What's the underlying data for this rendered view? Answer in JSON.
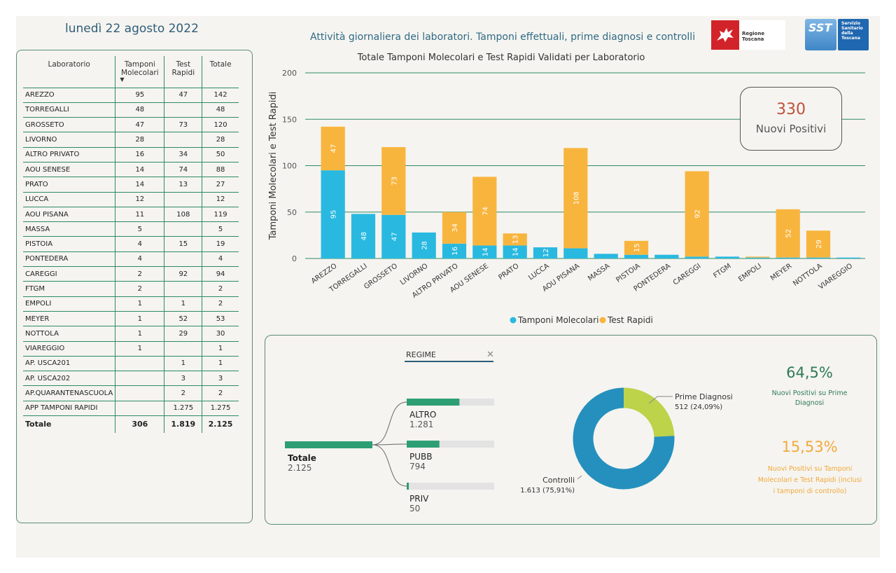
{
  "header": {
    "date": "lunedì 22 agosto 2022",
    "title": "Attività giornaliera dei laboratori. Tamponi effettuali, prime diagnosi e controlli",
    "logo_rt_text": "Regione Toscana",
    "logo_sst_abbr": "SST",
    "logo_sst_lines": [
      "Servizio",
      "Sanitario",
      "della",
      "Toscana"
    ]
  },
  "table": {
    "headers": {
      "lab": "Laboratorio",
      "mol1": "Tamponi",
      "mol2": "Molecolari",
      "rapid1": "Test",
      "rapid2": "Rapidi",
      "tot": "Totale"
    },
    "rows": [
      [
        "AREZZO",
        "95",
        "47",
        "142"
      ],
      [
        "TORREGALLI",
        "48",
        "",
        "48"
      ],
      [
        "GROSSETO",
        "47",
        "73",
        "120"
      ],
      [
        "LIVORNO",
        "28",
        "",
        "28"
      ],
      [
        "ALTRO PRIVATO",
        "16",
        "34",
        "50"
      ],
      [
        "AOU SENESE",
        "14",
        "74",
        "88"
      ],
      [
        "PRATO",
        "14",
        "13",
        "27"
      ],
      [
        "LUCCA",
        "12",
        "",
        "12"
      ],
      [
        "AOU PISANA",
        "11",
        "108",
        "119"
      ],
      [
        "MASSA",
        "5",
        "",
        "5"
      ],
      [
        "PISTOIA",
        "4",
        "15",
        "19"
      ],
      [
        "PONTEDERA",
        "4",
        "",
        "4"
      ],
      [
        "CAREGGI",
        "2",
        "92",
        "94"
      ],
      [
        "FTGM",
        "2",
        "",
        "2"
      ],
      [
        "EMPOLI",
        "1",
        "1",
        "2"
      ],
      [
        "MEYER",
        "1",
        "52",
        "53"
      ],
      [
        "NOTTOLA",
        "1",
        "29",
        "30"
      ],
      [
        "VIAREGGIO",
        "1",
        "",
        "1"
      ],
      [
        "AP. USCA201",
        "",
        "1",
        "1"
      ],
      [
        "AP. USCA202",
        "",
        "3",
        "3"
      ],
      [
        "AP.QUARANTENASCUOLA",
        "",
        "2",
        "2"
      ],
      [
        "APP TAMPONI RAPIDI",
        "",
        "1.275",
        "1.275"
      ]
    ],
    "total": [
      "Totale",
      "306",
      "1.819",
      "2.125"
    ]
  },
  "chart_data": {
    "type": "bar",
    "stacked": true,
    "title": "Totale Tamponi Molecolari e Test Rapidi Validati per Laboratorio",
    "xlabel": "",
    "ylabel": "Tamponi Molecolari e Test Rapidi",
    "ylim": [
      0,
      200
    ],
    "yticks": [
      0,
      50,
      100,
      150,
      200
    ],
    "grid": true,
    "legend_position": "bottom-center",
    "categories": [
      "AREZZO",
      "TORREGALLI",
      "GROSSETO",
      "LIVORNO",
      "ALTRO PRIVATO",
      "AOU SENESE",
      "PRATO",
      "LUCCA",
      "AOU PISANA",
      "MASSA",
      "PISTOIA",
      "PONTEDERA",
      "CAREGGI",
      "FTGM",
      "EMPOLI",
      "MEYER",
      "NOTTOLA",
      "VIAREGGIO"
    ],
    "series": [
      {
        "name": "Tamponi Molecolari",
        "color": "#29b9e0",
        "values": [
          95,
          48,
          47,
          28,
          16,
          14,
          14,
          12,
          11,
          5,
          4,
          4,
          2,
          2,
          1,
          1,
          1,
          1
        ],
        "labels": [
          "95",
          "48",
          "47",
          "28",
          "16",
          "14",
          "14",
          "12",
          "",
          "",
          "",
          "",
          "",
          "",
          "",
          "",
          "",
          ""
        ]
      },
      {
        "name": "Test Rapidi",
        "color": "#f8b53e",
        "values": [
          47,
          0,
          73,
          0,
          34,
          74,
          13,
          0,
          108,
          0,
          15,
          0,
          92,
          0,
          1,
          52,
          29,
          0
        ],
        "labels": [
          "47",
          "",
          "73",
          "",
          "34",
          "74",
          "13",
          "",
          "108",
          "",
          "15",
          "",
          "92",
          "",
          "",
          "52",
          "29",
          ""
        ]
      }
    ]
  },
  "kpi_positive": {
    "value": "330",
    "label": "Nuovi Positivi"
  },
  "regime": {
    "filter_label": "REGIME",
    "close_icon": "close-icon",
    "root": {
      "label": "Totale",
      "value": "2.125",
      "fraction": 1.0
    },
    "branches": [
      {
        "label": "ALTRO",
        "value": "1.281",
        "fraction": 0.6028
      },
      {
        "label": "PUBB",
        "value": "794",
        "fraction": 0.3736
      },
      {
        "label": "PRIV",
        "value": "50",
        "fraction": 0.0235
      }
    ],
    "bar_color": "#2e9e74"
  },
  "donut": {
    "slices": [
      {
        "name": "Prime Diagnosi",
        "value": 512,
        "percent": "24,09%",
        "label": "Prime Diagnosi",
        "sublabel": "512 (24,09%)",
        "color": "#bcd34a"
      },
      {
        "name": "Controlli",
        "value": 1613,
        "percent": "75,91%",
        "label": "Controlli",
        "sublabel": "1.613 (75,91%)",
        "color": "#2590bd"
      }
    ]
  },
  "kpis": [
    {
      "value": "64,5%",
      "label": "Nuovi Positivi su Prime Diagnosi",
      "color": "#2e7a56"
    },
    {
      "value": "15,53%",
      "label": "Nuovi Positivi su Tamponi Molecolari e Test Rapidi (inclusi i tamponi di controllo)",
      "color": "#f2a93b"
    }
  ]
}
